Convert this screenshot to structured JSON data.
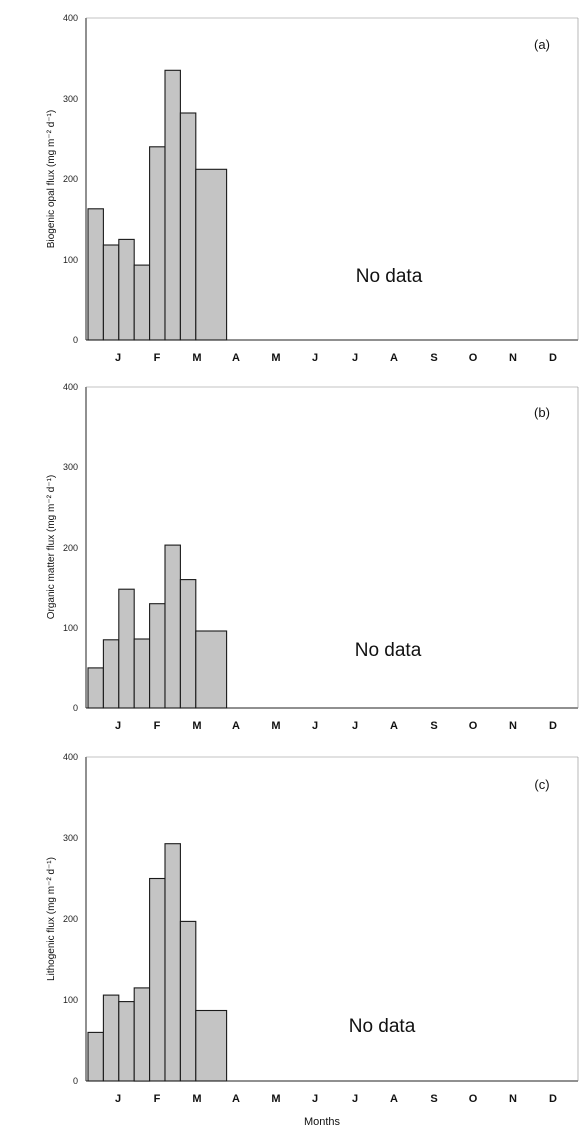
{
  "xlabel": "Months",
  "no_data_label": "No data",
  "chart_data": [
    {
      "type": "bar",
      "panel_label": "(a)",
      "ylabel": "Biogenic opal flux (mg m⁻² d⁻¹)",
      "ylim": [
        0,
        400
      ],
      "yticks": [
        "0",
        "100",
        "200",
        "300",
        "400"
      ],
      "month_labels": [
        "J",
        "F",
        "M",
        "A",
        "M",
        "J",
        "J",
        "A",
        "S",
        "O",
        "N",
        "D"
      ],
      "values": [
        163,
        118,
        125,
        93,
        240,
        335,
        282,
        212
      ],
      "colors": [
        "#c4c4c4",
        "#c4c4c4",
        "#c4c4c4",
        "#c4c4c4",
        "#c4c4c4",
        "#c4c4c4",
        "#c4c4c4",
        "#c4c4c4"
      ],
      "annotation": "No data"
    },
    {
      "type": "bar",
      "panel_label": "(b)",
      "ylabel": "Organic matter flux (mg m⁻² d⁻¹)",
      "ylim": [
        0,
        400
      ],
      "yticks": [
        "0",
        "100",
        "200",
        "300",
        "400"
      ],
      "month_labels": [
        "J",
        "F",
        "M",
        "A",
        "M",
        "J",
        "J",
        "A",
        "S",
        "O",
        "N",
        "D"
      ],
      "values": [
        50,
        85,
        148,
        86,
        130,
        203,
        160,
        96
      ],
      "colors": [
        "#c4c4c4",
        "#c4c4c4",
        "#c4c4c4",
        "#c4c4c4",
        "#c4c4c4",
        "#c4c4c4",
        "#c4c4c4",
        "#c4c4c4"
      ],
      "annotation": "No data"
    },
    {
      "type": "bar",
      "panel_label": "(c)",
      "ylabel": "Lithogenic flux (mg m⁻² d⁻¹)",
      "ylim": [
        0,
        400
      ],
      "yticks": [
        "0",
        "100",
        "200",
        "300",
        "400"
      ],
      "month_labels": [
        "J",
        "F",
        "M",
        "A",
        "M",
        "J",
        "J",
        "A",
        "S",
        "O",
        "N",
        "D"
      ],
      "values": [
        60,
        106,
        98,
        115,
        250,
        293,
        197,
        87
      ],
      "colors": [
        "#c4c4c4",
        "#c4c4c4",
        "#c4c4c4",
        "#c4c4c4",
        "#c4c4c4",
        "#c4c4c4",
        "#c4c4c4",
        "#c4c4c4"
      ],
      "annotation": "No data"
    }
  ]
}
